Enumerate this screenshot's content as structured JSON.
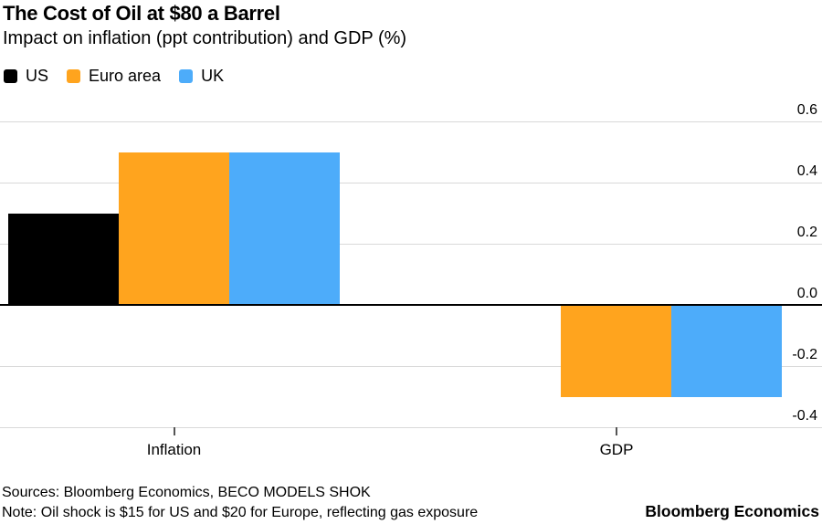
{
  "header": {
    "title": "The Cost of Oil at $80 a Barrel",
    "subtitle": "Impact on inflation (ppt contribution) and GDP (%)"
  },
  "chart_data": {
    "type": "bar",
    "title": "The Cost of Oil at $80 a Barrel",
    "subtitle": "Impact on inflation (ppt contribution) and GDP (%)",
    "categories": [
      "Inflation",
      "GDP"
    ],
    "series": [
      {
        "name": "US",
        "color": "#000000",
        "values": [
          0.3,
          0
        ]
      },
      {
        "name": "Euro area",
        "color": "#FFA41E",
        "values": [
          0.5,
          -0.3
        ]
      },
      {
        "name": "UK",
        "color": "#4DACFA",
        "values": [
          0.5,
          -0.3
        ]
      }
    ],
    "ytick_labels": [
      "0.6",
      "0.4",
      "0.2",
      "0.0",
      "-0.2",
      "-0.4"
    ],
    "ylim": [
      -0.4,
      0.6
    ],
    "grid": "horizontal",
    "gridline_color": "#d9d9d9",
    "zero_line": true,
    "zero_line_color": "#000000",
    "legend_position": "top-left",
    "yaxis_side": "right"
  },
  "footer": {
    "sources": "Sources: Bloomberg Economics, BECO MODELS SHOK",
    "note": "Note: Oil shock is $15 for US and $20 for Europe, reflecting gas exposure",
    "brand": "Bloomberg Economics"
  }
}
